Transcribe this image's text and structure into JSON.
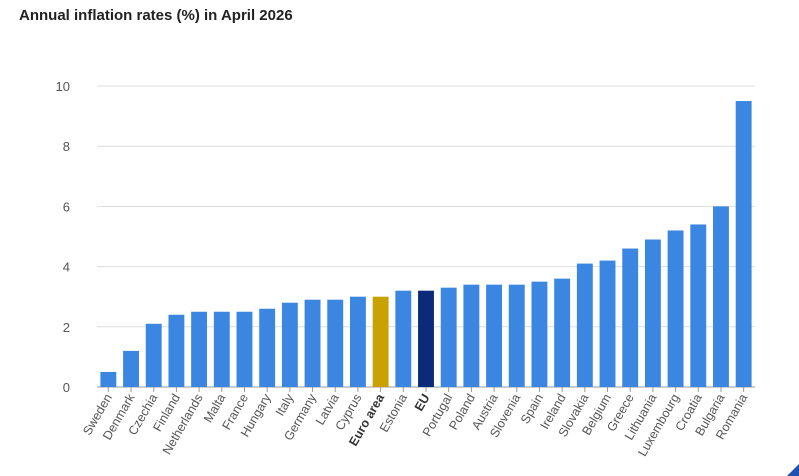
{
  "chart_data": {
    "type": "bar",
    "title": "Annual inflation rates (%) in April 2026",
    "categories": [
      "Sweden",
      "Denmark",
      "Czechia",
      "Finland",
      "Netherlands",
      "Malta",
      "France",
      "Hungary",
      "Italy",
      "Germany",
      "Latvia",
      "Cyprus",
      "Euro area",
      "Estonia",
      "EU",
      "Portugal",
      "Poland",
      "Austria",
      "Slovenia",
      "Spain",
      "Ireland",
      "Slovakia",
      "Belgium",
      "Greece",
      "Lithuania",
      "Luxembourg",
      "Croatia",
      "Bulgaria",
      "Romania"
    ],
    "values": [
      0.5,
      1.2,
      2.1,
      2.4,
      2.5,
      2.5,
      2.5,
      2.6,
      2.8,
      2.9,
      2.9,
      3.0,
      3.0,
      3.2,
      3.2,
      3.3,
      3.4,
      3.4,
      3.4,
      3.5,
      3.6,
      4.1,
      4.2,
      4.6,
      4.9,
      5.2,
      5.4,
      6.0,
      9.5
    ],
    "bold_categories": [
      "Euro area",
      "EU"
    ],
    "highlight_colors": {
      "Euro area": "#c9a100",
      "EU": "#0b2a7a"
    },
    "default_color": "#3a86e0",
    "ylim": [
      0,
      10
    ],
    "yticks": [
      0,
      2,
      4,
      6,
      8,
      10
    ],
    "xlabel": "",
    "ylabel": "",
    "grid": true
  }
}
